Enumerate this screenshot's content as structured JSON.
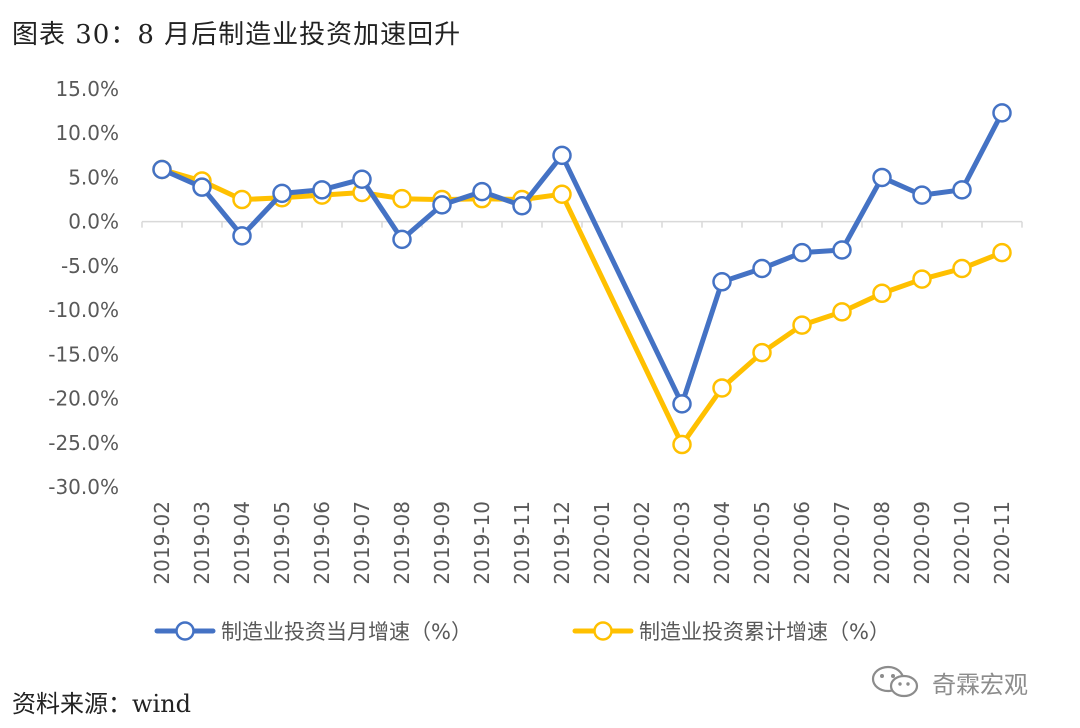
{
  "figure": {
    "title": "图表 30：8 月后制造业投资加速回升",
    "source": "资料来源：wind",
    "watermark": "奇霖宏观"
  },
  "colors": {
    "series_monthly": "#4472C4",
    "series_cumulative": "#FFC000",
    "axis": "#D9D9D9",
    "tick_text": "#595959"
  },
  "chart_data": {
    "type": "line",
    "title": "",
    "xlabel": "",
    "ylabel": "",
    "ylim": [
      -30,
      15
    ],
    "y_ticks": [
      15,
      10,
      5,
      0,
      -5,
      -10,
      -15,
      -20,
      -25,
      -30
    ],
    "y_tick_labels": [
      "15.0%",
      "10.0%",
      "5.0%",
      "0.0%",
      "-5.0%",
      "-10.0%",
      "-15.0%",
      "-20.0%",
      "-25.0%",
      "-30.0%"
    ],
    "grid": false,
    "legend_position": "bottom",
    "categories": [
      "2019-02",
      "2019-03",
      "2019-04",
      "2019-05",
      "2019-06",
      "2019-07",
      "2019-08",
      "2019-09",
      "2019-10",
      "2019-11",
      "2019-12",
      "2020-01",
      "2020-02",
      "2020-03",
      "2020-04",
      "2020-05",
      "2020-06",
      "2020-07",
      "2020-08",
      "2020-09",
      "2020-10",
      "2020-11"
    ],
    "series": [
      {
        "name": "制造业投资当月增速（%）",
        "color": "#4472C4",
        "values": [
          5.9,
          3.9,
          -1.6,
          3.2,
          3.6,
          4.8,
          -2.0,
          1.9,
          3.4,
          1.8,
          7.5,
          null,
          null,
          -20.6,
          -6.8,
          -5.3,
          -3.5,
          -3.2,
          5.0,
          3.0,
          3.6,
          12.3
        ]
      },
      {
        "name": "制造业投资累计增速（%）",
        "color": "#FFC000",
        "values": [
          5.9,
          4.6,
          2.5,
          2.7,
          3.0,
          3.3,
          2.6,
          2.5,
          2.6,
          2.5,
          3.1,
          null,
          null,
          -25.2,
          -18.8,
          -14.8,
          -11.7,
          -10.2,
          -8.1,
          -6.5,
          -5.3,
          -3.5
        ]
      }
    ]
  }
}
